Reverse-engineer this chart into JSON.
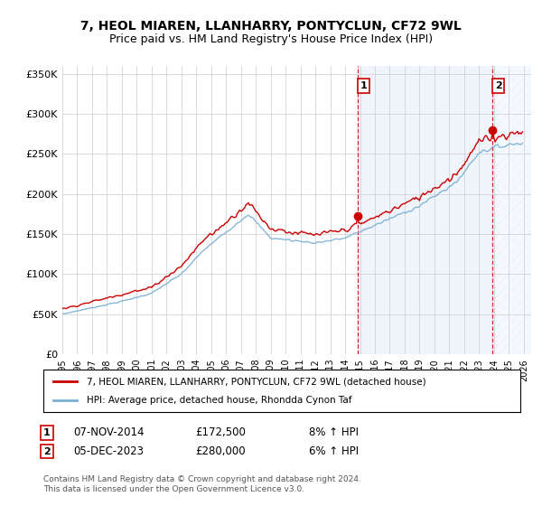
{
  "title": "7, HEOL MIAREN, LLANHARRY, PONTYCLUN, CF72 9WL",
  "subtitle": "Price paid vs. HM Land Registry's House Price Index (HPI)",
  "legend_property": "7, HEOL MIAREN, LLANHARRY, PONTYCLUN, CF72 9WL (detached house)",
  "legend_hpi": "HPI: Average price, detached house, Rhondda Cynon Taf",
  "transaction1_label": "1",
  "transaction1_date": "07-NOV-2014",
  "transaction1_price": "£172,500",
  "transaction1_hpi": "8% ↑ HPI",
  "transaction1_x": 2014.85,
  "transaction1_y": 172500,
  "transaction2_label": "2",
  "transaction2_date": "05-DEC-2023",
  "transaction2_price": "£280,000",
  "transaction2_hpi": "6% ↑ HPI",
  "transaction2_x": 2023.92,
  "transaction2_y": 280000,
  "footer": "Contains HM Land Registry data © Crown copyright and database right 2024.\nThis data is licensed under the Open Government Licence v3.0.",
  "property_color": "#cc0000",
  "hpi_color": "#7bafd4",
  "marker_color": "#cc0000",
  "shade_color": "#ddeeff",
  "hatch_color": "#ddeeff",
  "ylim": [
    0,
    360000
  ],
  "xlim_start": 1995.0,
  "xlim_end": 2026.5,
  "yticks": [
    0,
    50000,
    100000,
    150000,
    200000,
    250000,
    300000,
    350000
  ],
  "xticks": [
    1995,
    1996,
    1997,
    1998,
    1999,
    2000,
    2001,
    2002,
    2003,
    2004,
    2005,
    2006,
    2007,
    2008,
    2009,
    2010,
    2011,
    2012,
    2013,
    2014,
    2015,
    2016,
    2017,
    2018,
    2019,
    2020,
    2021,
    2022,
    2023,
    2024,
    2025,
    2026
  ],
  "fig_width": 6.0,
  "fig_height": 5.6,
  "dpi": 100
}
